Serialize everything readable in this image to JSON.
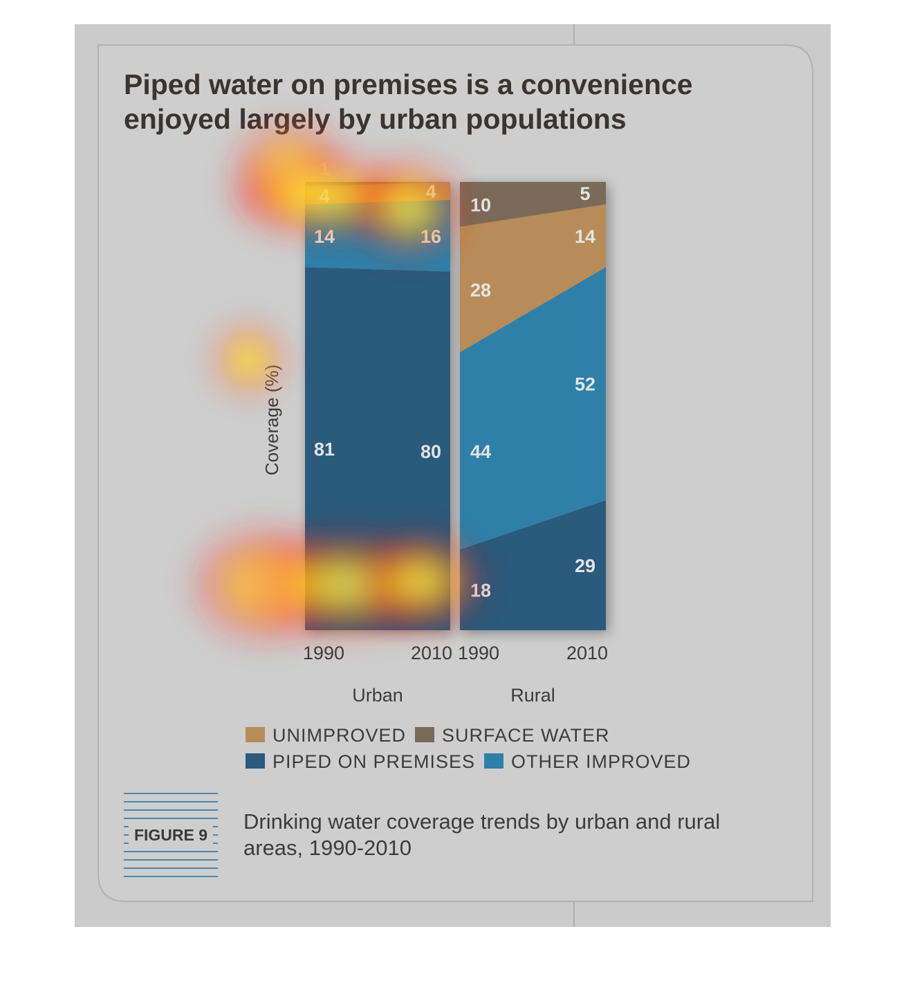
{
  "title_lines": [
    "Piped water on premises is a convenience",
    "enjoyed largely by urban populations"
  ],
  "chart_data": {
    "type": "area",
    "title": "Piped water on premises is a convenience enjoyed largely by urban populations",
    "ylabel": "Coverage (%)",
    "ylim": [
      0,
      100
    ],
    "panels": [
      {
        "name": "Urban",
        "x": [
          "1990",
          "2010"
        ],
        "series": [
          {
            "name": "PIPED ON PREMISES",
            "values": [
              81,
              80
            ]
          },
          {
            "name": "OTHER IMPROVED",
            "values": [
              14,
              16
            ]
          },
          {
            "name": "UNIMPROVED",
            "values": [
              4,
              4
            ]
          },
          {
            "name": "SURFACE WATER",
            "values": [
              1,
              0
            ]
          }
        ]
      },
      {
        "name": "Rural",
        "x": [
          "1990",
          "2010"
        ],
        "series": [
          {
            "name": "PIPED ON PREMISES",
            "values": [
              18,
              29
            ]
          },
          {
            "name": "OTHER IMPROVED",
            "values": [
              44,
              52
            ]
          },
          {
            "name": "UNIMPROVED",
            "values": [
              28,
              14
            ]
          },
          {
            "name": "SURFACE WATER",
            "values": [
              10,
              5
            ]
          }
        ]
      }
    ],
    "legend_rows": [
      [
        "UNIMPROVED",
        "SURFACE WATER"
      ],
      [
        "PIPED ON PREMISES",
        "OTHER IMPROVED"
      ]
    ],
    "legend_placement": "bottom",
    "grid": false
  },
  "colors": {
    "PIPED ON PREMISES": "#2a5a7c",
    "OTHER IMPROVED": "#2f80a8",
    "UNIMPROVED": "#b88c58",
    "SURFACE WATER": "#7a6a58",
    "panel_bg": "#cecece",
    "panel_border": "#b4b4b4",
    "figure_lines": "#4a86b0"
  },
  "figure": {
    "label": "FIGURE 9",
    "caption_lines": [
      "Drinking water coverage trends by urban and rural",
      "areas, 1990-2010"
    ]
  }
}
